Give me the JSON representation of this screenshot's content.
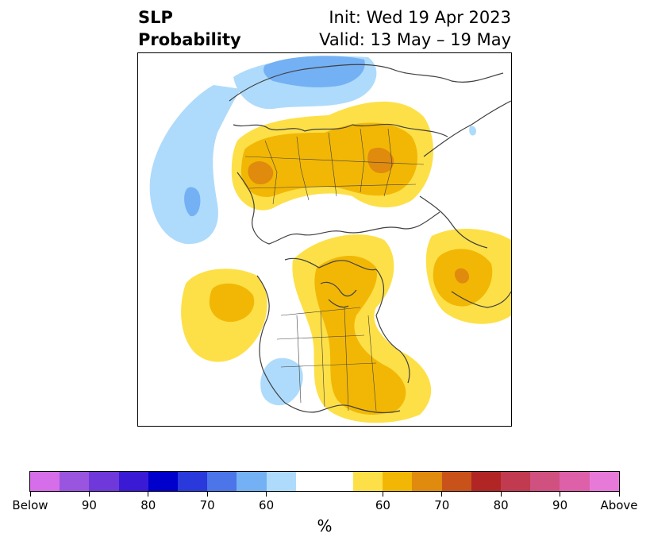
{
  "header": {
    "title_line1": "SLP",
    "title_line2": "Probability",
    "init_line": "Init: Wed 19 Apr 2023",
    "valid_line": "Valid: 13 May – 19 May"
  },
  "colorbar": {
    "unit": "%",
    "segments": [
      {
        "color": "#d56ee8",
        "category": "below"
      },
      {
        "color": "#9a55e0",
        "category": "below"
      },
      {
        "color": "#6e38da",
        "category": "below"
      },
      {
        "color": "#3a1ad4",
        "category": "below"
      },
      {
        "color": "#0000cc",
        "category": "below"
      },
      {
        "color": "#2939dc",
        "category": "below"
      },
      {
        "color": "#4b75e8",
        "category": "below"
      },
      {
        "color": "#74b0f4",
        "category": "below"
      },
      {
        "color": "#aedbfb",
        "category": "below"
      },
      {
        "color": "#ffffff",
        "category": "neutral",
        "wide": true
      },
      {
        "color": "#fde047",
        "category": "above"
      },
      {
        "color": "#f2b705",
        "category": "above"
      },
      {
        "color": "#e08a0e",
        "category": "above"
      },
      {
        "color": "#c8521a",
        "category": "above"
      },
      {
        "color": "#b22525",
        "category": "above"
      },
      {
        "color": "#c23a50",
        "category": "above"
      },
      {
        "color": "#d05080",
        "category": "above"
      },
      {
        "color": "#de60a8",
        "category": "above"
      },
      {
        "color": "#e77ad8",
        "category": "above"
      }
    ],
    "tick_labels": [
      "Below",
      "90",
      "80",
      "70",
      "60",
      "60",
      "70",
      "80",
      "90",
      "Above"
    ]
  },
  "map_colors": {
    "light_blue": "#aedbfb",
    "mid_blue": "#74b0f4",
    "yellow": "#fde047",
    "gold": "#f2b705",
    "orange": "#e08a0e",
    "land_line": "#404040"
  }
}
